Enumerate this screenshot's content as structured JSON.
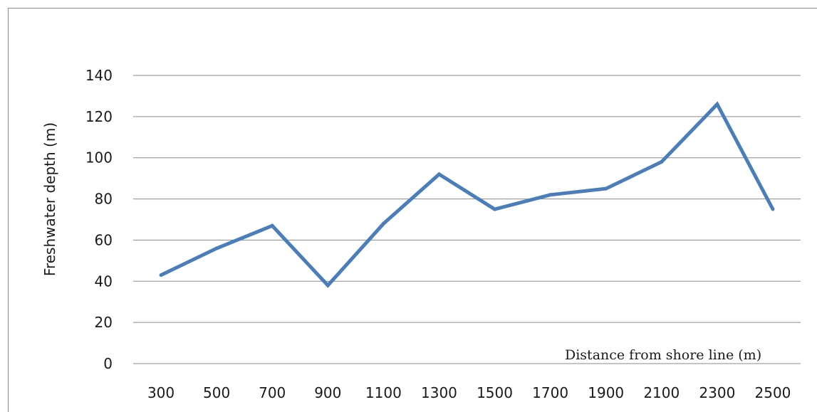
{
  "chart_data": {
    "type": "line",
    "title": "",
    "xlabel": "Distance from shore line (m)",
    "ylabel": "Freshwater depth (m)",
    "categories": [
      "300",
      "500",
      "700",
      "900",
      "1100",
      "1300",
      "1500",
      "1700",
      "1900",
      "2100",
      "2300",
      "2500"
    ],
    "series": [
      {
        "values": [
          43,
          56,
          67,
          38,
          68,
          92,
          75,
          82,
          85,
          98,
          126,
          75
        ],
        "color": "#4a7ebb"
      }
    ],
    "y_ticks": [
      "0",
      "20",
      "40",
      "60",
      "80",
      "100",
      "120",
      "140"
    ],
    "ylim": [
      0,
      140
    ],
    "grid": "horizontal",
    "legend": "none"
  }
}
